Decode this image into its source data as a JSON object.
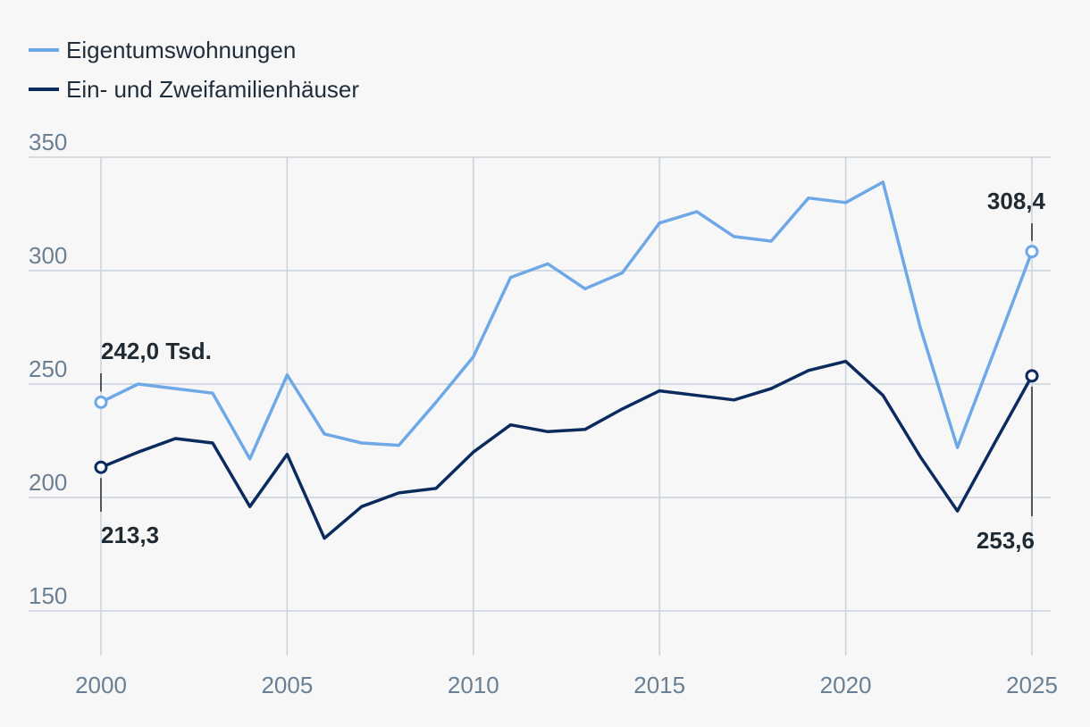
{
  "colors": {
    "light": "#6fa8e6",
    "dark": "#0b2b5e",
    "grid": "#c8d2dd",
    "background": "#f7f7f7"
  },
  "chart_data": {
    "type": "line",
    "x": [
      2000,
      2001,
      2002,
      2003,
      2004,
      2005,
      2006,
      2007,
      2008,
      2009,
      2010,
      2011,
      2012,
      2013,
      2014,
      2015,
      2016,
      2017,
      2018,
      2019,
      2020,
      2021,
      2022,
      2023,
      2024,
      2025
    ],
    "series": [
      {
        "name": "Eigentumswohnungen",
        "color": "#6fa8e6",
        "values": [
          242.0,
          250,
          248,
          246,
          217,
          254,
          228,
          224,
          223,
          242,
          262,
          297,
          303,
          292,
          299,
          321,
          326,
          315,
          313,
          332,
          330,
          339,
          275,
          222,
          265,
          308.4
        ]
      },
      {
        "name": "Ein- und Zweifamilienhäuser",
        "color": "#0b2b5e",
        "values": [
          213.3,
          220,
          226,
          224,
          196,
          219,
          182,
          196,
          202,
          204,
          220,
          232,
          229,
          230,
          239,
          247,
          245,
          243,
          248,
          256,
          260,
          245,
          218,
          194,
          224,
          253.6
        ]
      }
    ],
    "ylim": [
      130,
      355
    ],
    "yticks": [
      150,
      200,
      250,
      300,
      350
    ],
    "xticks": [
      2000,
      2005,
      2010,
      2015,
      2020,
      2025
    ],
    "grid": true,
    "legend": "top-left",
    "annotations": [
      {
        "text": "242,0 Tsd.",
        "series": 0,
        "x": 2000,
        "y": 242.0
      },
      {
        "text": "213,3",
        "series": 1,
        "x": 2000,
        "y": 213.3
      },
      {
        "text": "308,4",
        "series": 0,
        "x": 2025,
        "y": 308.4
      },
      {
        "text": "253,6",
        "series": 1,
        "x": 2025,
        "y": 253.6
      }
    ]
  }
}
